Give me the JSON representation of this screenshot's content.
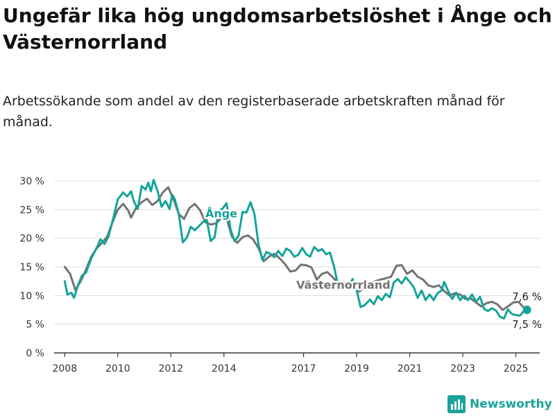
{
  "title": "Ungefär lika hög ungdomsarbetslöshet i Ånge och Västernorrland",
  "subtitle": "Arbetssökande som andel av den registerbaserade arbetskraften månad för månad.",
  "brand": {
    "name": "Newsworthy",
    "color": "#1aa39a",
    "icon": "bar-chart-logo-icon"
  },
  "colors": {
    "ange": "#13a39a",
    "vasternorrland": "#727272",
    "grid": "#dcdcdc",
    "axis": "#333333"
  },
  "chart_data": {
    "type": "line",
    "ylim": [
      0,
      30
    ],
    "xlim": [
      2007.6,
      2025.9
    ],
    "y_ticks": [
      {
        "value": 0,
        "label": "0 %"
      },
      {
        "value": 5,
        "label": "5 %"
      },
      {
        "value": 10,
        "label": "10 %"
      },
      {
        "value": 15,
        "label": "15 %"
      },
      {
        "value": 20,
        "label": "20 %"
      },
      {
        "value": 25,
        "label": "25 %"
      },
      {
        "value": 30,
        "label": "30 %"
      }
    ],
    "x_ticks": [
      {
        "value": 2008,
        "label": "2008"
      },
      {
        "value": 2010,
        "label": "2010"
      },
      {
        "value": 2012,
        "label": "2012"
      },
      {
        "value": 2014,
        "label": "2014"
      },
      {
        "value": 2017,
        "label": "2017"
      },
      {
        "value": 2019,
        "label": "2019"
      },
      {
        "value": 2021,
        "label": "2021"
      },
      {
        "value": 2023,
        "label": "2023"
      },
      {
        "value": 2025,
        "label": "2025"
      }
    ],
    "grid": true,
    "series": [
      {
        "name": "Västernorrland",
        "color": "#727272",
        "label_position": {
          "x": 2018.5,
          "y": 11.9
        },
        "end_label": "7,6 %",
        "points": [
          [
            2008.0,
            15.0
          ],
          [
            2008.2,
            13.8
          ],
          [
            2008.4,
            11.0
          ],
          [
            2008.6,
            12.5
          ],
          [
            2008.8,
            14.5
          ],
          [
            2009.0,
            16.8
          ],
          [
            2009.2,
            18.2
          ],
          [
            2009.4,
            19.2
          ],
          [
            2009.6,
            20.3
          ],
          [
            2009.8,
            22.8
          ],
          [
            2010.0,
            25.0
          ],
          [
            2010.2,
            26.0
          ],
          [
            2010.4,
            24.8
          ],
          [
            2010.5,
            23.6
          ],
          [
            2010.7,
            25.4
          ],
          [
            2010.9,
            26.3
          ],
          [
            2011.1,
            26.9
          ],
          [
            2011.3,
            25.8
          ],
          [
            2011.5,
            26.5
          ],
          [
            2011.7,
            28.0
          ],
          [
            2011.9,
            28.9
          ],
          [
            2012.1,
            26.8
          ],
          [
            2012.3,
            24.2
          ],
          [
            2012.5,
            23.4
          ],
          [
            2012.7,
            25.3
          ],
          [
            2012.9,
            26.0
          ],
          [
            2013.1,
            24.9
          ],
          [
            2013.3,
            22.8
          ],
          [
            2013.5,
            22.4
          ],
          [
            2013.7,
            22.6
          ],
          [
            2013.9,
            23.5
          ],
          [
            2014.1,
            23.5
          ],
          [
            2014.3,
            20.3
          ],
          [
            2014.5,
            19.2
          ],
          [
            2014.7,
            20.2
          ],
          [
            2014.9,
            20.5
          ],
          [
            2015.1,
            19.8
          ],
          [
            2015.3,
            18.3
          ],
          [
            2015.5,
            16.0
          ],
          [
            2015.7,
            16.8
          ],
          [
            2015.9,
            17.3
          ],
          [
            2016.1,
            16.5
          ],
          [
            2016.3,
            15.5
          ],
          [
            2016.5,
            14.2
          ],
          [
            2016.7,
            14.4
          ],
          [
            2016.9,
            15.4
          ],
          [
            2017.1,
            15.3
          ],
          [
            2017.3,
            14.9
          ],
          [
            2017.5,
            12.8
          ],
          [
            2017.7,
            13.8
          ],
          [
            2017.9,
            14.1
          ],
          [
            2018.1,
            13.2
          ],
          [
            2018.3,
            12.2
          ],
          [
            2018.5,
            11.5
          ],
          [
            2018.7,
            12.3
          ],
          [
            2018.9,
            11.3
          ],
          [
            2019.1,
            10.7
          ],
          [
            2019.3,
            11.5
          ],
          [
            2019.5,
            12.1
          ],
          [
            2019.7,
            12.5
          ],
          [
            2019.9,
            12.8
          ],
          [
            2020.1,
            13.0
          ],
          [
            2020.3,
            13.3
          ],
          [
            2020.5,
            15.2
          ],
          [
            2020.7,
            15.3
          ],
          [
            2020.9,
            13.8
          ],
          [
            2021.1,
            14.4
          ],
          [
            2021.3,
            13.3
          ],
          [
            2021.5,
            12.8
          ],
          [
            2021.7,
            11.8
          ],
          [
            2021.9,
            11.5
          ],
          [
            2022.1,
            11.8
          ],
          [
            2022.3,
            10.8
          ],
          [
            2022.5,
            10.0
          ],
          [
            2022.7,
            10.4
          ],
          [
            2022.9,
            10.2
          ],
          [
            2023.1,
            9.4
          ],
          [
            2023.3,
            9.5
          ],
          [
            2023.5,
            8.8
          ],
          [
            2023.7,
            8.1
          ],
          [
            2023.9,
            8.7
          ],
          [
            2024.1,
            8.9
          ],
          [
            2024.3,
            8.5
          ],
          [
            2024.5,
            7.5
          ],
          [
            2024.7,
            8.1
          ],
          [
            2024.9,
            8.8
          ],
          [
            2025.1,
            8.9
          ],
          [
            2025.3,
            7.9
          ],
          [
            2025.42,
            7.6
          ]
        ]
      },
      {
        "name": "Ånge",
        "color": "#13a39a",
        "label_position": {
          "x": 2013.9,
          "y": 24.4
        },
        "end_label": "7,5 %",
        "points": [
          [
            2008.0,
            12.5
          ],
          [
            2008.1,
            10.2
          ],
          [
            2008.25,
            10.5
          ],
          [
            2008.35,
            9.6
          ],
          [
            2008.5,
            11.8
          ],
          [
            2008.65,
            13.5
          ],
          [
            2008.8,
            14.0
          ],
          [
            2009.0,
            16.5
          ],
          [
            2009.2,
            18.3
          ],
          [
            2009.35,
            19.8
          ],
          [
            2009.5,
            19.0
          ],
          [
            2009.65,
            20.3
          ],
          [
            2009.8,
            23.0
          ],
          [
            2010.0,
            26.8
          ],
          [
            2010.2,
            28.0
          ],
          [
            2010.35,
            27.3
          ],
          [
            2010.5,
            28.2
          ],
          [
            2010.6,
            26.5
          ],
          [
            2010.75,
            25.1
          ],
          [
            2010.9,
            29.1
          ],
          [
            2011.05,
            28.5
          ],
          [
            2011.15,
            29.7
          ],
          [
            2011.25,
            28.2
          ],
          [
            2011.35,
            30.2
          ],
          [
            2011.5,
            28.2
          ],
          [
            2011.65,
            25.5
          ],
          [
            2011.8,
            26.5
          ],
          [
            2011.95,
            25.1
          ],
          [
            2012.05,
            27.6
          ],
          [
            2012.15,
            26.8
          ],
          [
            2012.3,
            24.2
          ],
          [
            2012.45,
            19.3
          ],
          [
            2012.6,
            20.1
          ],
          [
            2012.75,
            22.0
          ],
          [
            2012.9,
            21.4
          ],
          [
            2013.05,
            22.1
          ],
          [
            2013.2,
            22.8
          ],
          [
            2013.35,
            23.3
          ],
          [
            2013.5,
            19.5
          ],
          [
            2013.65,
            20.2
          ],
          [
            2013.8,
            24.8
          ],
          [
            2013.95,
            25.2
          ],
          [
            2014.1,
            26.1
          ],
          [
            2014.25,
            21.5
          ],
          [
            2014.4,
            19.5
          ],
          [
            2014.55,
            20.4
          ],
          [
            2014.7,
            24.6
          ],
          [
            2014.85,
            24.5
          ],
          [
            2015.0,
            26.3
          ],
          [
            2015.15,
            24.2
          ],
          [
            2015.3,
            19.0
          ],
          [
            2015.45,
            16.2
          ],
          [
            2015.6,
            17.6
          ],
          [
            2015.75,
            17.3
          ],
          [
            2015.9,
            16.7
          ],
          [
            2016.05,
            17.8
          ],
          [
            2016.2,
            16.9
          ],
          [
            2016.35,
            18.2
          ],
          [
            2016.5,
            17.8
          ],
          [
            2016.65,
            16.8
          ],
          [
            2016.8,
            17.1
          ],
          [
            2016.95,
            18.3
          ],
          [
            2017.1,
            17.2
          ],
          [
            2017.25,
            16.8
          ],
          [
            2017.4,
            18.5
          ],
          [
            2017.55,
            17.8
          ],
          [
            2017.7,
            18.1
          ],
          [
            2017.85,
            17.2
          ],
          [
            2018.0,
            17.5
          ],
          [
            2018.15,
            15.0
          ],
          [
            2018.3,
            11.8
          ],
          [
            2018.5,
            12.4
          ],
          [
            2018.7,
            11.6
          ],
          [
            2018.85,
            12.9
          ],
          [
            2019.0,
            10.9
          ],
          [
            2019.15,
            8.0
          ],
          [
            2019.3,
            8.3
          ],
          [
            2019.5,
            9.3
          ],
          [
            2019.65,
            8.5
          ],
          [
            2019.8,
            9.9
          ],
          [
            2019.95,
            9.2
          ],
          [
            2020.1,
            10.3
          ],
          [
            2020.25,
            9.7
          ],
          [
            2020.4,
            12.3
          ],
          [
            2020.55,
            12.9
          ],
          [
            2020.7,
            12.1
          ],
          [
            2020.85,
            13.2
          ],
          [
            2021.0,
            12.4
          ],
          [
            2021.15,
            11.5
          ],
          [
            2021.3,
            9.6
          ],
          [
            2021.45,
            10.9
          ],
          [
            2021.6,
            9.2
          ],
          [
            2021.75,
            10.2
          ],
          [
            2021.9,
            9.2
          ],
          [
            2022.05,
            10.4
          ],
          [
            2022.2,
            10.9
          ],
          [
            2022.3,
            12.4
          ],
          [
            2022.45,
            10.8
          ],
          [
            2022.6,
            9.4
          ],
          [
            2022.75,
            10.5
          ],
          [
            2022.9,
            9.2
          ],
          [
            2023.05,
            10.0
          ],
          [
            2023.2,
            9.2
          ],
          [
            2023.35,
            10.2
          ],
          [
            2023.5,
            8.9
          ],
          [
            2023.65,
            9.8
          ],
          [
            2023.8,
            7.7
          ],
          [
            2023.95,
            7.3
          ],
          [
            2024.1,
            7.8
          ],
          [
            2024.25,
            7.4
          ],
          [
            2024.4,
            6.3
          ],
          [
            2024.55,
            6.0
          ],
          [
            2024.7,
            7.6
          ],
          [
            2024.85,
            6.8
          ],
          [
            2025.0,
            6.6
          ],
          [
            2025.15,
            6.5
          ],
          [
            2025.3,
            7.3
          ],
          [
            2025.42,
            7.5
          ]
        ]
      }
    ]
  }
}
